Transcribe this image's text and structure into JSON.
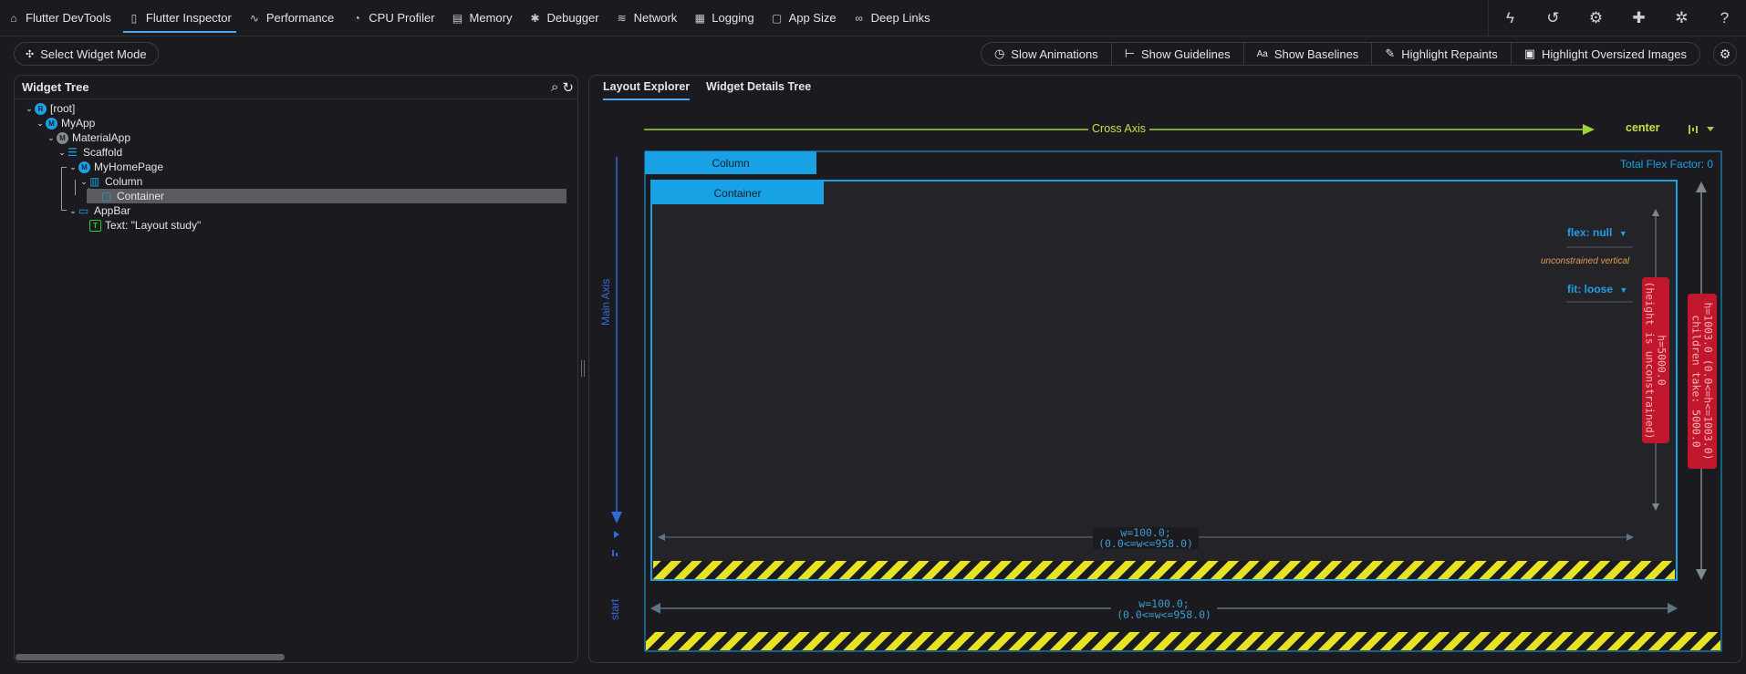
{
  "topbar": {
    "tabs": [
      {
        "label": "Flutter DevTools",
        "icon": "home-icon"
      },
      {
        "label": "Flutter Inspector",
        "icon": "phone-icon"
      },
      {
        "label": "Performance",
        "icon": "pulse-icon"
      },
      {
        "label": "CPU Profiler",
        "icon": "gauge-icon"
      },
      {
        "label": "Memory",
        "icon": "memory-icon"
      },
      {
        "label": "Debugger",
        "icon": "bug-icon"
      },
      {
        "label": "Network",
        "icon": "wifi-icon"
      },
      {
        "label": "Logging",
        "icon": "log-icon"
      },
      {
        "label": "App Size",
        "icon": "file-icon"
      },
      {
        "label": "Deep Links",
        "icon": "link-icon"
      }
    ],
    "active_tab": "Flutter Inspector",
    "right_icons": [
      "flash-icon",
      "history-icon",
      "settings-icon",
      "extension-icon",
      "bug-report-icon",
      "help-icon"
    ]
  },
  "toolbar": {
    "select_widget_mode": "Select Widget Mode",
    "toggles": [
      "Slow Animations",
      "Show Guidelines",
      "Show Baselines",
      "Highlight Repaints",
      "Highlight Oversized Images"
    ]
  },
  "widget_tree": {
    "title": "Widget Tree",
    "nodes": [
      {
        "label": "[root]",
        "icon": "R",
        "color": "#1ea0e6"
      },
      {
        "label": "MyApp",
        "icon": "M",
        "color": "#1ea0e6"
      },
      {
        "label": "MaterialApp",
        "icon": "M",
        "color": "#8a8a8a"
      },
      {
        "label": "Scaffold",
        "icon": "scaffold-icon",
        "color": "#1ea0e6"
      },
      {
        "label": "MyHomePage",
        "icon": "M",
        "color": "#1ea0e6"
      },
      {
        "label": "Column",
        "icon": "column-icon",
        "color": "#1ea0e6"
      },
      {
        "label": "Container",
        "icon": "container-icon",
        "color": "#1ea0e6"
      },
      {
        "label": "AppBar",
        "icon": "appbar-icon",
        "color": "#1ea0e6"
      },
      {
        "label": "Text: \"Layout study\"",
        "icon": "T",
        "color": "#27c93f"
      }
    ],
    "selected": "Container"
  },
  "layout_panel": {
    "tabs": [
      "Layout Explorer",
      "Widget Details Tree"
    ],
    "active_tab": "Layout Explorer",
    "cross_axis_label": "Cross Axis",
    "cross_axis_value": "center",
    "main_axis_label": "Main Axis",
    "main_axis_value": "start",
    "column_label": "Column",
    "container_label": "Container",
    "total_flex": "Total Flex Factor: 0",
    "flex_value": "flex: null",
    "unconstrained_note": "unconstrained vertical",
    "fit_value": "fit: loose",
    "inner_height_l1": "h=5000.0",
    "inner_height_l2": "(height is unconstrained)",
    "outer_height_l1": "h=1003.0 (0.0<=h<=1003.0)",
    "outer_height_l2": "children take: 5000.0",
    "inner_width_l1": "w=100.0;",
    "inner_width_l2": "(0.0<=w<=958.0)",
    "outer_width_l1": "w=100.0;",
    "outer_width_l2": "(0.0<=w<=958.0)"
  },
  "colors": {
    "accent": "#4fa7f2",
    "flex_blue": "#18a1e4",
    "cross_axis_green": "#9ed13b",
    "main_axis_blue": "#2f6bd6",
    "overflow_red": "#c0172d",
    "stripe_yellow": "#e7e222"
  }
}
